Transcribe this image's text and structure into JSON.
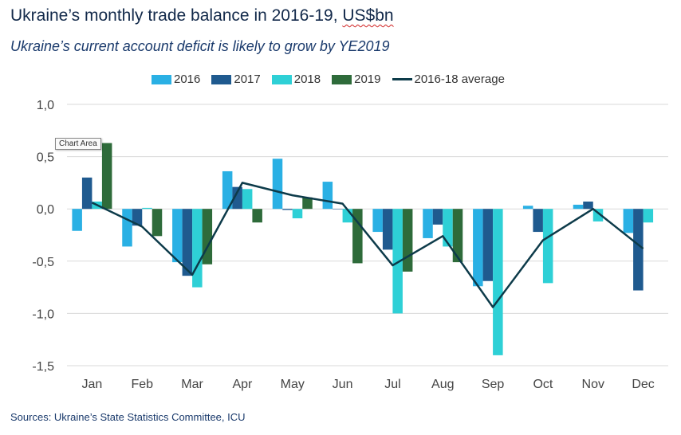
{
  "header": {
    "title_main": "Ukraine’s monthly trade balance in 2016-19, ",
    "title_unit": "US$bn",
    "subtitle": "Ukraine’s current account deficit is likely to grow by YE2019"
  },
  "tooltip": "Chart Area",
  "footer": {
    "source": "Sources: Ukraine’s State Statistics Committee, ICU"
  },
  "colors": {
    "s2016": "#2ab0e4",
    "s2017": "#1f5a8f",
    "s2018": "#2ed0d6",
    "s2019": "#2e6b3a",
    "avg": "#0d3b4a",
    "grid": "#d9d9d9"
  },
  "chart_data": {
    "type": "bar",
    "title": "Ukraine’s monthly trade balance in 2016-19, US$bn",
    "subtitle": "Ukraine’s current account deficit is likely to grow by YE2019",
    "categories": [
      "Jan",
      "Feb",
      "Mar",
      "Apr",
      "May",
      "Jun",
      "Jul",
      "Aug",
      "Sep",
      "Oct",
      "Nov",
      "Dec"
    ],
    "series": [
      {
        "name": "2016",
        "type": "bar",
        "values": [
          -0.21,
          -0.36,
          -0.51,
          0.36,
          0.48,
          0.26,
          -0.22,
          -0.28,
          -0.74,
          0.03,
          0.04,
          -0.23
        ]
      },
      {
        "name": "2017",
        "type": "bar",
        "values": [
          0.3,
          -0.16,
          -0.64,
          0.21,
          -0.01,
          0.0,
          -0.39,
          -0.15,
          -0.69,
          -0.22,
          0.07,
          -0.78
        ]
      },
      {
        "name": "2018",
        "type": "bar",
        "values": [
          0.07,
          0.01,
          -0.75,
          0.19,
          -0.09,
          -0.13,
          -1.0,
          -0.36,
          -1.4,
          -0.71,
          -0.12,
          -0.13
        ]
      },
      {
        "name": "2019",
        "type": "bar",
        "values": [
          0.63,
          -0.26,
          -0.53,
          -0.13,
          0.11,
          -0.52,
          -0.6,
          -0.51,
          null,
          null,
          null,
          null
        ]
      },
      {
        "name": "2016-18 average",
        "type": "line",
        "values": [
          0.06,
          -0.17,
          -0.63,
          0.25,
          0.13,
          0.05,
          -0.54,
          -0.26,
          -0.94,
          -0.3,
          0.0,
          -0.38
        ]
      }
    ],
    "y_ticks": [
      "1,0",
      "0,5",
      "0,0",
      "-0,5",
      "-1,0",
      "-1,5"
    ],
    "ylim": [
      -1.5,
      1.0
    ],
    "grid": true,
    "legend": "top"
  }
}
